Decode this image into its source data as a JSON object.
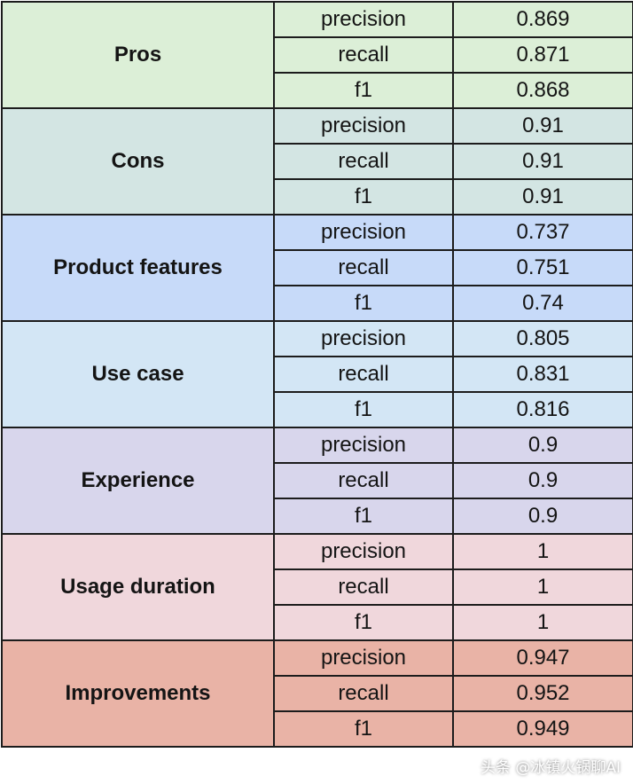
{
  "table": {
    "metric_labels": [
      "precision",
      "recall",
      "f1"
    ],
    "groups": [
      {
        "category": "Pros",
        "color": "#dcefd7",
        "values": [
          "0.869",
          "0.871",
          "0.868"
        ]
      },
      {
        "category": "Cons",
        "color": "#d3e5e3",
        "values": [
          "0.91",
          "0.91",
          "0.91"
        ]
      },
      {
        "category": "Product features",
        "color": "#c7daf9",
        "values": [
          "0.737",
          "0.751",
          "0.74"
        ]
      },
      {
        "category": "Use case",
        "color": "#d3e6f5",
        "values": [
          "0.805",
          "0.831",
          "0.816"
        ]
      },
      {
        "category": "Experience",
        "color": "#d8d6ec",
        "values": [
          "0.9",
          "0.9",
          "0.9"
        ]
      },
      {
        "category": "Usage duration",
        "color": "#f0d7dc",
        "values": [
          "1",
          "1",
          "1"
        ]
      },
      {
        "category": "Improvements",
        "color": "#e9b3a6",
        "values": [
          "0.947",
          "0.952",
          "0.949"
        ]
      }
    ]
  },
  "watermark": "头条 @冰镇火锅聊AI"
}
